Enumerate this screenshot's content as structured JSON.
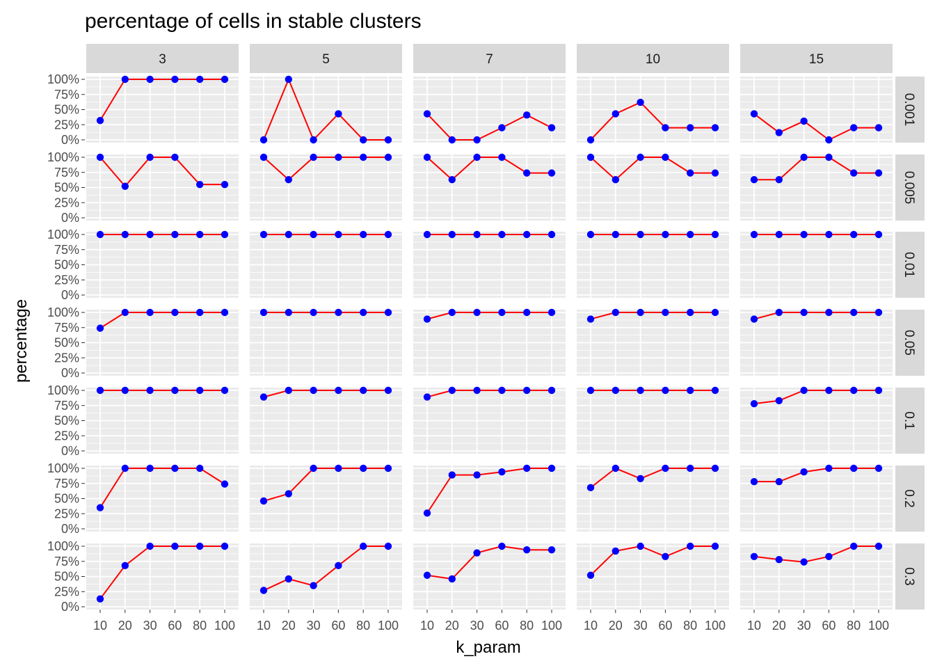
{
  "chart_data": {
    "type": "line",
    "title": "percentage of cells in stable clusters",
    "xlabel": "k_param",
    "ylabel": "percentage",
    "x_categories": [
      "10",
      "20",
      "30",
      "60",
      "80",
      "100"
    ],
    "ylim": [
      0,
      1
    ],
    "y_ticks": [
      "0%",
      "25%",
      "50%",
      "75%",
      "100%"
    ],
    "col_facets": [
      "3",
      "5",
      "7",
      "10",
      "15"
    ],
    "row_facets": [
      "0.001",
      "0.005",
      "0.01",
      "0.05",
      "0.1",
      "0.2",
      "0.3"
    ],
    "line_color": "#ff0000",
    "point_color": "#0000ff",
    "panel_background": "#ebebeb",
    "strip_background": "#d9d9d9",
    "grid": true,
    "panels": [
      [
        {
          "col": "3",
          "values": [
            0.32,
            1.0,
            1.0,
            1.0,
            1.0,
            1.0
          ]
        },
        {
          "col": "5",
          "values": [
            0.0,
            1.0,
            0.0,
            0.43,
            0.0,
            0.0
          ]
        },
        {
          "col": "7",
          "values": [
            0.43,
            0.0,
            0.0,
            0.2,
            0.41,
            0.2
          ]
        },
        {
          "col": "10",
          "values": [
            0.0,
            0.43,
            0.62,
            0.2,
            0.2,
            0.2
          ]
        },
        {
          "col": "15",
          "values": [
            0.43,
            0.12,
            0.31,
            0.0,
            0.2,
            0.2
          ]
        }
      ],
      [
        {
          "col": "3",
          "values": [
            1.0,
            0.52,
            1.0,
            1.0,
            0.55,
            0.55
          ]
        },
        {
          "col": "5",
          "values": [
            1.0,
            0.63,
            1.0,
            1.0,
            1.0,
            1.0
          ]
        },
        {
          "col": "7",
          "values": [
            1.0,
            0.63,
            1.0,
            1.0,
            0.74,
            0.74
          ]
        },
        {
          "col": "10",
          "values": [
            1.0,
            0.63,
            1.0,
            1.0,
            0.74,
            0.74
          ]
        },
        {
          "col": "15",
          "values": [
            0.63,
            0.63,
            1.0,
            1.0,
            0.74,
            0.74
          ]
        }
      ],
      [
        {
          "col": "3",
          "values": [
            1.0,
            1.0,
            1.0,
            1.0,
            1.0,
            1.0
          ]
        },
        {
          "col": "5",
          "values": [
            1.0,
            1.0,
            1.0,
            1.0,
            1.0,
            1.0
          ]
        },
        {
          "col": "7",
          "values": [
            1.0,
            1.0,
            1.0,
            1.0,
            1.0,
            1.0
          ]
        },
        {
          "col": "10",
          "values": [
            1.0,
            1.0,
            1.0,
            1.0,
            1.0,
            1.0
          ]
        },
        {
          "col": "15",
          "values": [
            1.0,
            1.0,
            1.0,
            1.0,
            1.0,
            1.0
          ]
        }
      ],
      [
        {
          "col": "3",
          "values": [
            0.74,
            1.0,
            1.0,
            1.0,
            1.0,
            1.0
          ]
        },
        {
          "col": "5",
          "values": [
            1.0,
            1.0,
            1.0,
            1.0,
            1.0,
            1.0
          ]
        },
        {
          "col": "7",
          "values": [
            0.89,
            1.0,
            1.0,
            1.0,
            1.0,
            1.0
          ]
        },
        {
          "col": "10",
          "values": [
            0.89,
            1.0,
            1.0,
            1.0,
            1.0,
            1.0
          ]
        },
        {
          "col": "15",
          "values": [
            0.89,
            1.0,
            1.0,
            1.0,
            1.0,
            1.0
          ]
        }
      ],
      [
        {
          "col": "3",
          "values": [
            1.0,
            1.0,
            1.0,
            1.0,
            1.0,
            1.0
          ]
        },
        {
          "col": "5",
          "values": [
            0.89,
            1.0,
            1.0,
            1.0,
            1.0,
            1.0
          ]
        },
        {
          "col": "7",
          "values": [
            0.89,
            1.0,
            1.0,
            1.0,
            1.0,
            1.0
          ]
        },
        {
          "col": "10",
          "values": [
            1.0,
            1.0,
            1.0,
            1.0,
            1.0,
            1.0
          ]
        },
        {
          "col": "15",
          "values": [
            0.78,
            0.83,
            1.0,
            1.0,
            1.0,
            1.0
          ]
        }
      ],
      [
        {
          "col": "3",
          "values": [
            0.35,
            1.0,
            1.0,
            1.0,
            1.0,
            0.74
          ]
        },
        {
          "col": "5",
          "values": [
            0.46,
            0.58,
            1.0,
            1.0,
            1.0,
            1.0
          ]
        },
        {
          "col": "7",
          "values": [
            0.26,
            0.89,
            0.89,
            0.94,
            1.0,
            1.0
          ]
        },
        {
          "col": "10",
          "values": [
            0.68,
            1.0,
            0.83,
            1.0,
            1.0,
            1.0
          ]
        },
        {
          "col": "15",
          "values": [
            0.78,
            0.78,
            0.94,
            1.0,
            1.0,
            1.0
          ]
        }
      ],
      [
        {
          "col": "3",
          "values": [
            0.13,
            0.68,
            1.0,
            1.0,
            1.0,
            1.0
          ]
        },
        {
          "col": "5",
          "values": [
            0.27,
            0.46,
            0.35,
            0.68,
            1.0,
            1.0
          ]
        },
        {
          "col": "7",
          "values": [
            0.52,
            0.46,
            0.89,
            1.0,
            0.94,
            0.94
          ]
        },
        {
          "col": "10",
          "values": [
            0.52,
            0.92,
            1.0,
            0.83,
            1.0,
            1.0
          ]
        },
        {
          "col": "15",
          "values": [
            0.83,
            0.78,
            0.74,
            0.83,
            1.0,
            1.0
          ]
        }
      ]
    ]
  }
}
